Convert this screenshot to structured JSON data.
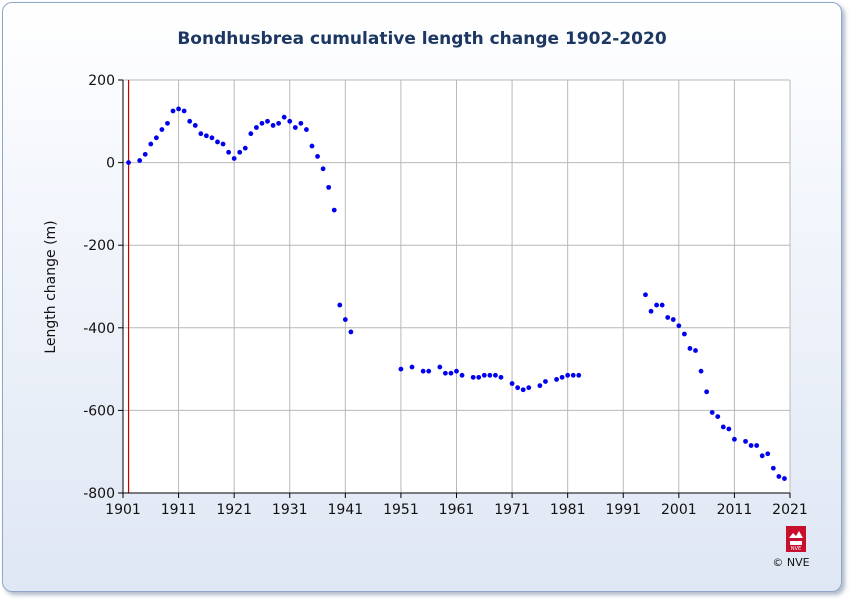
{
  "chart_data": {
    "type": "scatter",
    "title": "Bondhusbrea cumulative length change 1902-2020",
    "xlabel": "",
    "ylabel": "Length change (m)",
    "xlim": [
      1901,
      2021
    ],
    "ylim": [
      -800,
      200
    ],
    "xticks": [
      1901,
      1911,
      1921,
      1931,
      1941,
      1951,
      1961,
      1971,
      1981,
      1991,
      2001,
      2011,
      2021
    ],
    "yticks": [
      200,
      0,
      -200,
      -400,
      -600,
      -800
    ],
    "grid": true,
    "reference_line_x": 1902,
    "marker_color": "#0000ee",
    "reference_line_color": "#cc0000",
    "series": [
      {
        "x": [
          1902,
          1904,
          1905,
          1906,
          1907,
          1908,
          1909,
          1910,
          1911,
          1912,
          1913,
          1914,
          1915,
          1916,
          1917,
          1918,
          1919,
          1920,
          1921,
          1922,
          1923,
          1924,
          1925,
          1926,
          1927,
          1928,
          1929,
          1930,
          1931,
          1932,
          1933,
          1934,
          1935,
          1936,
          1937,
          1938,
          1939,
          1940,
          1941,
          1942,
          1951,
          1953,
          1955,
          1956,
          1958,
          1959,
          1960,
          1961,
          1962,
          1964,
          1965,
          1966,
          1967,
          1968,
          1969,
          1971,
          1972,
          1973,
          1974,
          1976,
          1977,
          1979,
          1980,
          1981,
          1982,
          1983,
          1995,
          1996,
          1997,
          1998,
          1999,
          2000,
          2001,
          2002,
          2003,
          2004,
          2005,
          2006,
          2007,
          2008,
          2009,
          2010,
          2011,
          2013,
          2014,
          2015,
          2016,
          2017,
          2018,
          2019,
          2020
        ],
        "y": [
          0,
          5,
          20,
          45,
          60,
          80,
          95,
          125,
          130,
          125,
          100,
          90,
          70,
          65,
          60,
          50,
          45,
          25,
          10,
          25,
          35,
          70,
          85,
          95,
          100,
          90,
          95,
          110,
          100,
          85,
          95,
          80,
          40,
          15,
          -15,
          -60,
          -115,
          -345,
          -380,
          -410,
          -500,
          -495,
          -505,
          -505,
          -495,
          -510,
          -510,
          -505,
          -515,
          -520,
          -520,
          -515,
          -515,
          -515,
          -520,
          -535,
          -545,
          -550,
          -545,
          -540,
          -530,
          -525,
          -520,
          -515,
          -515,
          -515,
          -320,
          -360,
          -345,
          -345,
          -375,
          -380,
          -395,
          -415,
          -450,
          -455,
          -505,
          -555,
          -605,
          -615,
          -640,
          -645,
          -670,
          -675,
          -685,
          -685,
          -710,
          -705,
          -740,
          -760,
          -765
        ]
      }
    ]
  },
  "credit": {
    "text": "© NVE",
    "logo_text": "NVE"
  }
}
